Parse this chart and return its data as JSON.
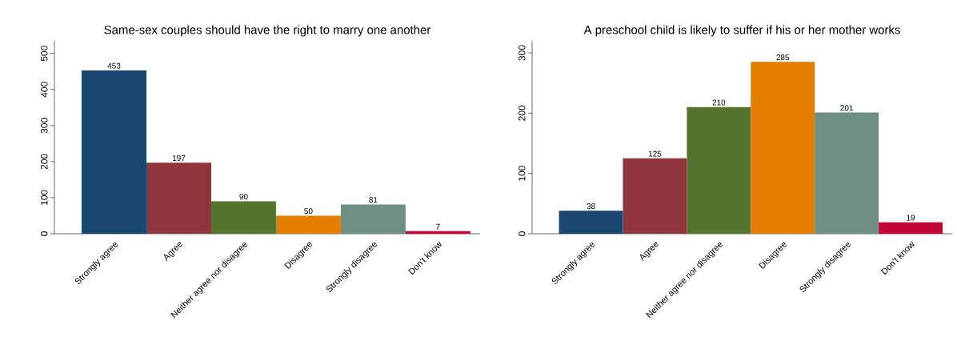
{
  "chart_data": [
    {
      "type": "bar",
      "title": "Same-sex couples should have the right to marry one another",
      "categories": [
        "Strongly agree",
        "Agree",
        "Neither agree nor disagree",
        "Disagree",
        "Strongly disagree",
        "Don't know"
      ],
      "values": [
        453,
        197,
        90,
        50,
        81,
        7
      ],
      "colors": [
        "#1a476f",
        "#90353b",
        "#55752f",
        "#e37e00",
        "#6e8e84",
        "#c10534"
      ],
      "ylim": [
        0,
        535
      ],
      "yticks": [
        0,
        100,
        200,
        300,
        400,
        500
      ],
      "data_labels": true
    },
    {
      "type": "bar",
      "title": "A preschool child is likely to suffer if his or her mother works",
      "categories": [
        "Strongly agree",
        "Agree",
        "Neither agree nor disagree",
        "Disagree",
        "Strongly disagree",
        "Don't know"
      ],
      "values": [
        38,
        125,
        210,
        285,
        201,
        19
      ],
      "colors": [
        "#1a476f",
        "#90353b",
        "#55752f",
        "#e37e00",
        "#6e8e84",
        "#c10534"
      ],
      "ylim": [
        0,
        320
      ],
      "yticks": [
        0,
        100,
        200,
        300
      ],
      "data_labels": true
    }
  ]
}
